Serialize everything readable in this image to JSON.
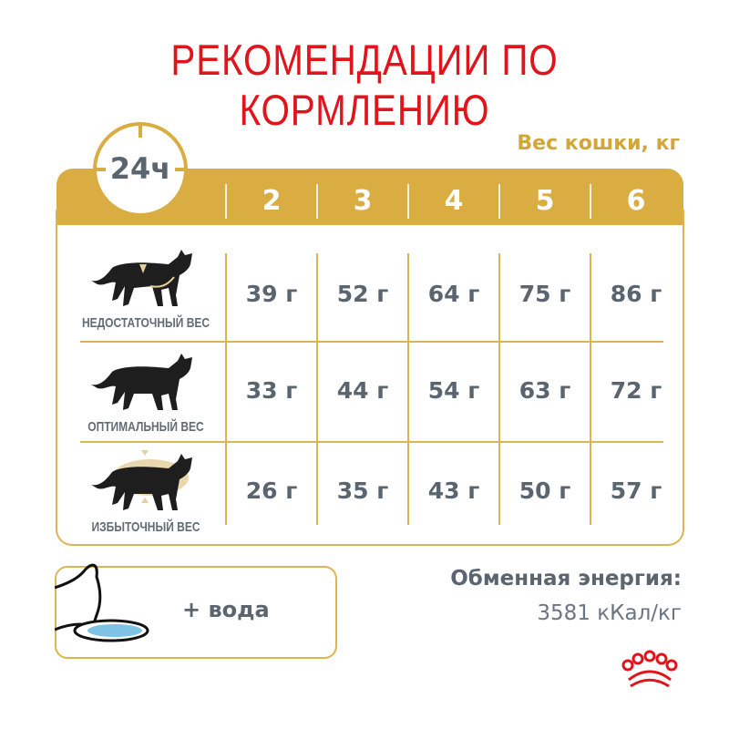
{
  "title": "РЕКОМЕНДАЦИИ ПО КОРМЛЕНИЮ",
  "period": "24ч",
  "weight_header": "Вес кошки, кг",
  "weights": [
    "2",
    "3",
    "4",
    "5",
    "6"
  ],
  "rows": [
    {
      "label": "НЕДОСТАТОЧНЫЙ ВЕС",
      "values": [
        "39 г",
        "52 г",
        "64 г",
        "75 г",
        "86 г"
      ]
    },
    {
      "label": "ОПТИМАЛЬНЫЙ ВЕС",
      "values": [
        "33 г",
        "44 г",
        "54 г",
        "63 г",
        "72 г"
      ]
    },
    {
      "label": "ИЗБЫТОЧНЫЙ ВЕС",
      "values": [
        "26 г",
        "35 г",
        "43 г",
        "50 г",
        "57 г"
      ]
    }
  ],
  "water": "+ вода",
  "energy_label": "Обменная энергия:",
  "energy_value": "3581 кКал/кг",
  "colors": {
    "title": "#e1141b",
    "gold": "#d9ad42",
    "text": "#5b6570"
  }
}
